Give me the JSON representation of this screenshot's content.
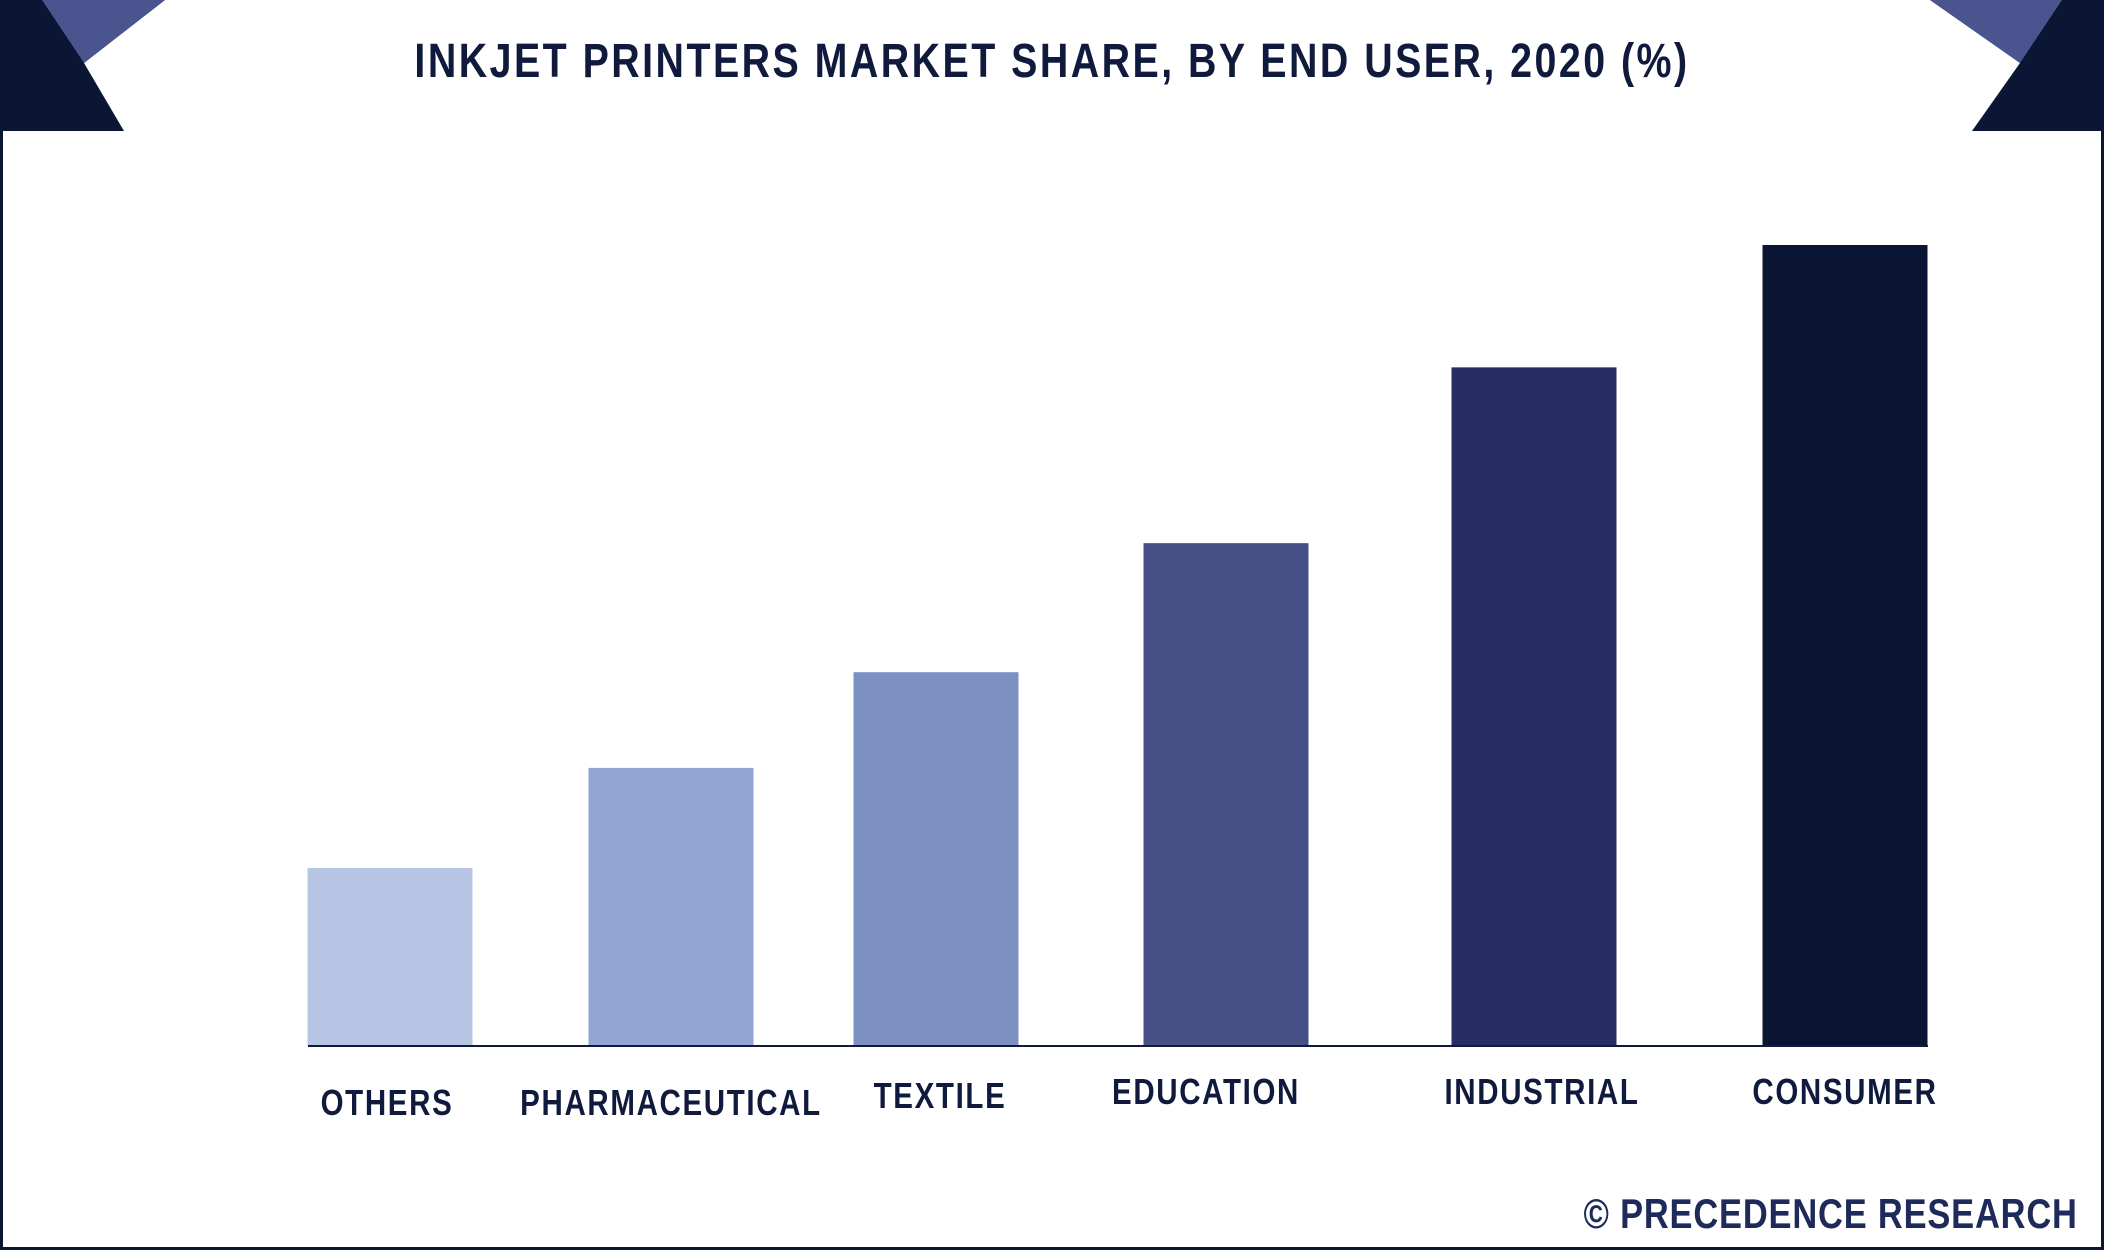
{
  "header": {
    "title": "INKJET PRINTERS MARKET SHARE, BY END USER, 2020 (%)"
  },
  "footer": {
    "credit": "© PRECEDENCE RESEARCH"
  },
  "colors": {
    "frame": "#0a1633",
    "accent_triangle": "#4a5590",
    "title_text": "#0f1a3d",
    "axis": "#0f1a3d"
  },
  "chart_data": {
    "type": "bar",
    "title": "INKJET PRINTERS MARKET SHARE, BY END USER, 2020 (%)",
    "xlabel": "",
    "ylabel": "",
    "categories": [
      "OTHERS",
      "PHARMACEUTICAL",
      "TEXTILE",
      "EDUCATION",
      "INDUSTRIAL",
      "CONSUMER"
    ],
    "values": [
      8,
      12.5,
      16.8,
      22.6,
      30.5,
      36
    ],
    "bar_colors": [
      "#b8c4e3",
      "#91a5d4",
      "#7d90c2",
      "#475086",
      "#262e63",
      "#0a1533"
    ],
    "ylim": [
      0,
      40
    ],
    "grid": false,
    "legend": "none"
  }
}
